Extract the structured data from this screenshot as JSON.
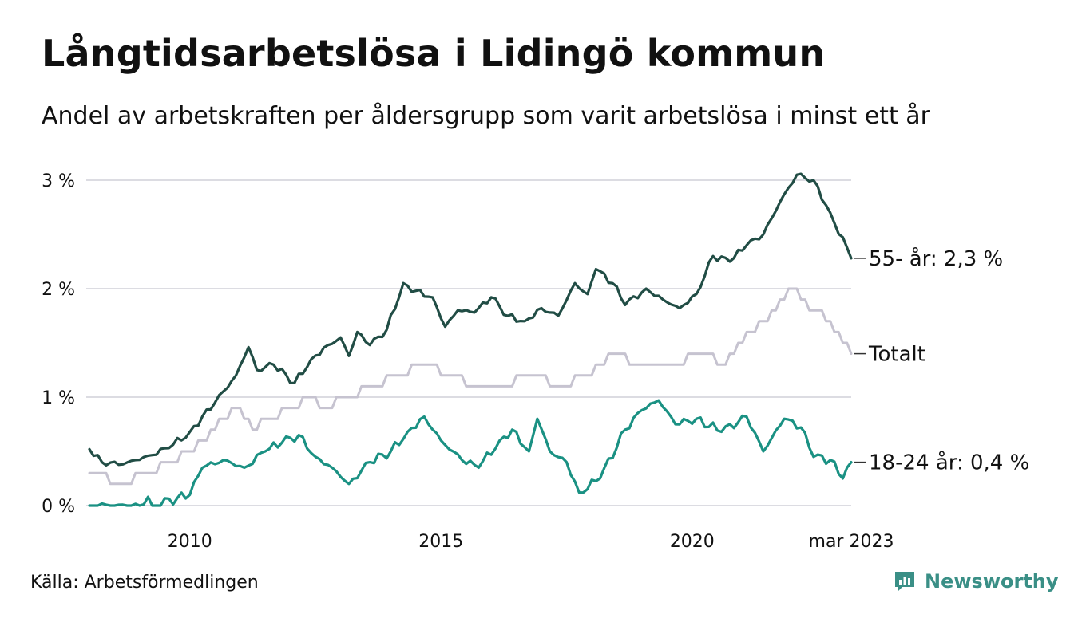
{
  "title": "Långtidsarbetslösa i Lidingö kommun",
  "subtitle": "Andel av arbetskraften per åldersgrupp som varit arbetslösa i minst ett år",
  "source": "Källa: Arbetsförmedlingen",
  "brand": {
    "name": "Newsworthy",
    "icon": "newsworthy-logo-icon",
    "color": "#3a8f86"
  },
  "chart_data": {
    "type": "line",
    "title": "Långtidsarbetslösa i Lidingö kommun",
    "subtitle": "Andel av arbetskraften per åldersgrupp som varit arbetslösa i minst ett år",
    "xlabel": "",
    "ylabel": "",
    "x_start": "2008-01",
    "x_end": "2023-03",
    "x_tick_labels": [
      "2010",
      "2015",
      "2020",
      "mar 2023"
    ],
    "x_tick_dates": [
      "2010-01",
      "2015-01",
      "2020-01",
      "2023-03"
    ],
    "y_ticks": [
      0,
      1,
      2,
      3
    ],
    "y_tick_labels": [
      "0 %",
      "1 %",
      "2 %",
      "3 %"
    ],
    "ylim": [
      0,
      3
    ],
    "unit": "%",
    "grid": "horizontal",
    "legend": "direct labels at line ends (right)",
    "series": [
      {
        "name": "55- år",
        "end_label": "55- år: 2,3 %",
        "color": "#214d45",
        "knots": [
          [
            "2008-01",
            0.52
          ],
          [
            "2008-04",
            0.4
          ],
          [
            "2008-09",
            0.38
          ],
          [
            "2009-03",
            0.46
          ],
          [
            "2009-08",
            0.53
          ],
          [
            "2010-01",
            0.68
          ],
          [
            "2010-07",
            0.95
          ],
          [
            "2010-12",
            1.2
          ],
          [
            "2011-03",
            1.46
          ],
          [
            "2011-05",
            1.25
          ],
          [
            "2011-09",
            1.3
          ],
          [
            "2012-02",
            1.13
          ],
          [
            "2012-06",
            1.35
          ],
          [
            "2012-10",
            1.48
          ],
          [
            "2013-01",
            1.55
          ],
          [
            "2013-03",
            1.38
          ],
          [
            "2013-05",
            1.6
          ],
          [
            "2013-08",
            1.48
          ],
          [
            "2013-12",
            1.62
          ],
          [
            "2014-04",
            2.05
          ],
          [
            "2014-07",
            1.98
          ],
          [
            "2014-11",
            1.92
          ],
          [
            "2015-02",
            1.65
          ],
          [
            "2015-05",
            1.8
          ],
          [
            "2015-09",
            1.78
          ],
          [
            "2016-01",
            1.92
          ],
          [
            "2016-05",
            1.75
          ],
          [
            "2016-09",
            1.7
          ],
          [
            "2017-01",
            1.82
          ],
          [
            "2017-05",
            1.75
          ],
          [
            "2017-09",
            2.05
          ],
          [
            "2017-12",
            1.95
          ],
          [
            "2018-02",
            2.18
          ],
          [
            "2018-06",
            2.05
          ],
          [
            "2018-09",
            1.85
          ],
          [
            "2019-02",
            2.0
          ],
          [
            "2019-06",
            1.9
          ],
          [
            "2019-10",
            1.82
          ],
          [
            "2020-02",
            1.95
          ],
          [
            "2020-06",
            2.3
          ],
          [
            "2020-10",
            2.25
          ],
          [
            "2021-02",
            2.4
          ],
          [
            "2021-06",
            2.5
          ],
          [
            "2021-10",
            2.8
          ],
          [
            "2022-02",
            3.05
          ],
          [
            "2022-06",
            3.0
          ],
          [
            "2022-10",
            2.7
          ],
          [
            "2023-03",
            2.28
          ]
        ]
      },
      {
        "name": "Totalt",
        "end_label": "Totalt",
        "color": "#c6c3d0",
        "knots": [
          [
            "2008-01",
            0.3
          ],
          [
            "2008-09",
            0.2
          ],
          [
            "2009-03",
            0.3
          ],
          [
            "2009-09",
            0.4
          ],
          [
            "2010-04",
            0.6
          ],
          [
            "2010-09",
            0.8
          ],
          [
            "2011-01",
            0.9
          ],
          [
            "2011-04",
            0.7
          ],
          [
            "2011-08",
            0.8
          ],
          [
            "2012-02",
            0.9
          ],
          [
            "2012-06",
            1.0
          ],
          [
            "2012-09",
            0.9
          ],
          [
            "2013-02",
            1.0
          ],
          [
            "2013-09",
            1.1
          ],
          [
            "2014-03",
            1.2
          ],
          [
            "2014-09",
            1.3
          ],
          [
            "2015-03",
            1.2
          ],
          [
            "2015-09",
            1.1
          ],
          [
            "2016-04",
            1.1
          ],
          [
            "2016-10",
            1.2
          ],
          [
            "2017-06",
            1.1
          ],
          [
            "2017-12",
            1.2
          ],
          [
            "2018-06",
            1.4
          ],
          [
            "2019-01",
            1.3
          ],
          [
            "2019-09",
            1.3
          ],
          [
            "2020-03",
            1.4
          ],
          [
            "2020-09",
            1.3
          ],
          [
            "2021-03",
            1.6
          ],
          [
            "2021-09",
            1.8
          ],
          [
            "2022-01",
            2.0
          ],
          [
            "2022-06",
            1.8
          ],
          [
            "2022-10",
            1.7
          ],
          [
            "2023-03",
            1.4
          ]
        ]
      },
      {
        "name": "18-24 år",
        "end_label": "18-24 år: 0,4 %",
        "color": "#1a9183",
        "knots": [
          [
            "2008-01",
            0.0
          ],
          [
            "2009-01",
            0.0
          ],
          [
            "2009-03",
            0.08
          ],
          [
            "2009-04",
            0.0
          ],
          [
            "2010-01",
            0.1
          ],
          [
            "2010-04",
            0.35
          ],
          [
            "2010-09",
            0.42
          ],
          [
            "2011-02",
            0.35
          ],
          [
            "2011-07",
            0.5
          ],
          [
            "2011-11",
            0.58
          ],
          [
            "2012-03",
            0.65
          ],
          [
            "2012-07",
            0.45
          ],
          [
            "2012-11",
            0.35
          ],
          [
            "2013-03",
            0.2
          ],
          [
            "2013-08",
            0.4
          ],
          [
            "2014-01",
            0.5
          ],
          [
            "2014-05",
            0.68
          ],
          [
            "2014-09",
            0.82
          ],
          [
            "2015-01",
            0.6
          ],
          [
            "2015-06",
            0.42
          ],
          [
            "2015-10",
            0.35
          ],
          [
            "2016-03",
            0.6
          ],
          [
            "2016-06",
            0.7
          ],
          [
            "2016-10",
            0.5
          ],
          [
            "2016-12",
            0.8
          ],
          [
            "2017-03",
            0.5
          ],
          [
            "2017-07",
            0.4
          ],
          [
            "2017-10",
            0.12
          ],
          [
            "2018-03",
            0.25
          ],
          [
            "2018-09",
            0.7
          ],
          [
            "2019-01",
            0.88
          ],
          [
            "2019-05",
            0.97
          ],
          [
            "2019-09",
            0.75
          ],
          [
            "2020-02",
            0.8
          ],
          [
            "2020-08",
            0.68
          ],
          [
            "2021-02",
            0.82
          ],
          [
            "2021-06",
            0.5
          ],
          [
            "2021-11",
            0.8
          ],
          [
            "2022-03",
            0.72
          ],
          [
            "2022-06",
            0.45
          ],
          [
            "2022-10",
            0.42
          ],
          [
            "2023-01",
            0.25
          ],
          [
            "2023-03",
            0.4
          ]
        ]
      }
    ]
  }
}
